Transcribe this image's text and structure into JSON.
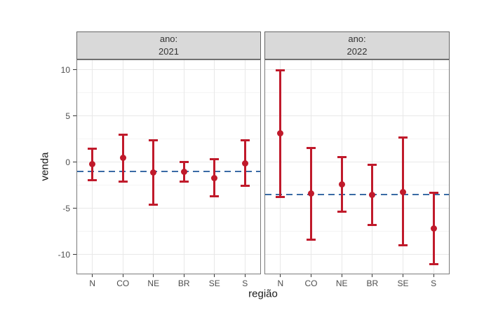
{
  "axes": {
    "y_title": "venda",
    "x_title": "região",
    "y_tick_labels": [
      "10",
      "5",
      "0",
      "-5",
      "-10"
    ],
    "x_tick_labels": [
      "N",
      "CO",
      "NE",
      "BR",
      "SE",
      "S"
    ]
  },
  "chart_data": {
    "type": "pointrange",
    "title": "",
    "xlabel": "região",
    "ylabel": "venda",
    "faceting": {
      "variable": "ano",
      "facet_values": [
        "2021",
        "2022"
      ]
    },
    "categories": [
      "N",
      "CO",
      "NE",
      "BR",
      "SE",
      "S"
    ],
    "ylim": [
      -12.05,
      11.05
    ],
    "y_major_ticks": [
      10,
      5,
      0,
      -5,
      -10
    ],
    "y_minor_ticks": [
      7.5,
      2.5,
      -2.5,
      -7.5
    ],
    "grid": "major and minor horizontal, major vertical at category centers",
    "legend": "none",
    "facets": [
      {
        "strip_line1": "ano:",
        "strip_line2": "2021",
        "ref_line_y": -1.0,
        "series": [
          {
            "category": "N",
            "est": -0.2,
            "lo": -2.0,
            "hi": 1.5
          },
          {
            "category": "CO",
            "est": 0.5,
            "lo": -2.1,
            "hi": 3.0
          },
          {
            "category": "NE",
            "est": -1.1,
            "lo": -4.6,
            "hi": 2.4
          },
          {
            "category": "BR",
            "est": -1.0,
            "lo": -2.1,
            "hi": 0.1
          },
          {
            "category": "SE",
            "est": -1.7,
            "lo": -3.7,
            "hi": 0.4
          },
          {
            "category": "S",
            "est": -0.1,
            "lo": -2.6,
            "hi": 2.4
          }
        ]
      },
      {
        "strip_line1": "ano:",
        "strip_line2": "2022",
        "ref_line_y": -3.5,
        "series": [
          {
            "category": "N",
            "est": 3.1,
            "lo": -3.8,
            "hi": 10.0
          },
          {
            "category": "CO",
            "est": -3.4,
            "lo": -8.4,
            "hi": 1.6
          },
          {
            "category": "NE",
            "est": -2.4,
            "lo": -5.4,
            "hi": 0.6
          },
          {
            "category": "BR",
            "est": -3.5,
            "lo": -6.8,
            "hi": -0.2
          },
          {
            "category": "SE",
            "est": -3.2,
            "lo": -9.0,
            "hi": 2.7
          },
          {
            "category": "S",
            "est": -7.2,
            "lo": -11.1,
            "hi": -3.3
          }
        ]
      }
    ],
    "colors": {
      "point_range": "#c01a2b",
      "ref_line": "#3a6ba5",
      "grid_major": "#e8e8e8",
      "grid_minor": "#f4f4f4",
      "strip_bg": "#d9d9d9",
      "strip_border": "#666666",
      "panel_border": "#7a7a7a",
      "panel_bg": "#ffffff",
      "figure_bg": "#ffffff",
      "axis_text": "#4d4d4d",
      "axis_title": "#1a1a1a"
    }
  }
}
